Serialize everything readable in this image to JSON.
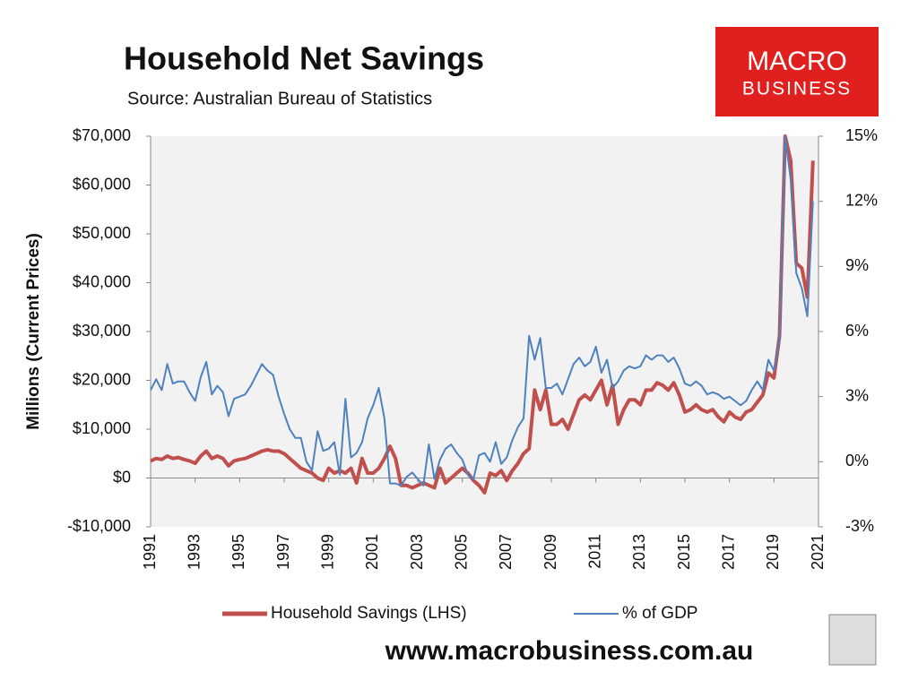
{
  "chart_data": {
    "type": "line",
    "title": "Household Net Savings",
    "subtitle": "Source: Australian Bureau of Statistics",
    "y_label": "Millions (Current Prices)",
    "logo": {
      "line1": "MACRO",
      "line2": "BUSINESS"
    },
    "footer": "www.macrobusiness.com.au",
    "x": [
      1991,
      1991.25,
      1991.5,
      1991.75,
      1992,
      1992.25,
      1992.5,
      1992.75,
      1993,
      1993.25,
      1993.5,
      1993.75,
      1994,
      1994.25,
      1994.5,
      1994.75,
      1995,
      1995.25,
      1995.5,
      1995.75,
      1996,
      1996.25,
      1996.5,
      1996.75,
      1997,
      1997.25,
      1997.5,
      1997.75,
      1998,
      1998.25,
      1998.5,
      1998.75,
      1999,
      1999.25,
      1999.5,
      1999.75,
      2000,
      2000.25,
      2000.5,
      2000.75,
      2001,
      2001.25,
      2001.5,
      2001.75,
      2002,
      2002.25,
      2002.5,
      2002.75,
      2003,
      2003.25,
      2003.5,
      2003.75,
      2004,
      2004.25,
      2004.5,
      2004.75,
      2005,
      2005.25,
      2005.5,
      2005.75,
      2006,
      2006.25,
      2006.5,
      2006.75,
      2007,
      2007.25,
      2007.5,
      2007.75,
      2008,
      2008.25,
      2008.5,
      2008.75,
      2009,
      2009.25,
      2009.5,
      2009.75,
      2010,
      2010.25,
      2010.5,
      2010.75,
      2011,
      2011.25,
      2011.5,
      2011.75,
      2012,
      2012.25,
      2012.5,
      2012.75,
      2013,
      2013.25,
      2013.5,
      2013.75,
      2014,
      2014.25,
      2014.5,
      2014.75,
      2015,
      2015.25,
      2015.5,
      2015.75,
      2016,
      2016.25,
      2016.5,
      2016.75,
      2017,
      2017.25,
      2017.5,
      2017.75,
      2018,
      2018.25,
      2018.5,
      2018.75,
      2019,
      2019.25,
      2019.5,
      2019.75,
      2020,
      2020.25,
      2020.5,
      2020.75
    ],
    "xlim": [
      1991,
      2021
    ],
    "xticks": [
      1991,
      1993,
      1995,
      1997,
      1999,
      2001,
      2003,
      2005,
      2007,
      2009,
      2011,
      2013,
      2015,
      2017,
      2019,
      2021
    ],
    "ylim": [
      -10000,
      70000
    ],
    "yticks": [
      {
        "value": -10000,
        "label": "-$10,000"
      },
      {
        "value": 0,
        "label": "$0"
      },
      {
        "value": 10000,
        "label": "$10,000"
      },
      {
        "value": 20000,
        "label": "$20,000"
      },
      {
        "value": 30000,
        "label": "$30,000"
      },
      {
        "value": 40000,
        "label": "$40,000"
      },
      {
        "value": 50000,
        "label": "$50,000"
      },
      {
        "value": 60000,
        "label": "$60,000"
      },
      {
        "value": 70000,
        "label": "$70,000"
      }
    ],
    "y2lim": [
      -3,
      15
    ],
    "y2ticks": [
      {
        "value": -3,
        "label": "-3%"
      },
      {
        "value": 0,
        "label": "0%"
      },
      {
        "value": 3,
        "label": "3%"
      },
      {
        "value": 6,
        "label": "6%"
      },
      {
        "value": 9,
        "label": "9%"
      },
      {
        "value": 12,
        "label": "12%"
      },
      {
        "value": 15,
        "label": "15%"
      }
    ],
    "series": [
      {
        "name": "Household Savings (LHS)",
        "color": "#c0504d",
        "values": [
          3500,
          4000,
          3800,
          4500,
          4000,
          4200,
          3800,
          3500,
          3000,
          4500,
          5500,
          4000,
          4500,
          4000,
          2500,
          3500,
          3800,
          4000,
          4500,
          5000,
          5500,
          5800,
          5500,
          5500,
          5000,
          4000,
          3000,
          2000,
          1500,
          1000,
          0,
          -500,
          2000,
          1000,
          1500,
          1000,
          2000,
          -1000,
          4000,
          1000,
          1000,
          2000,
          4000,
          6500,
          4000,
          -1500,
          -1500,
          -2000,
          -1500,
          -1000,
          -1500,
          -2000,
          2000,
          -1000,
          0,
          1000,
          2000,
          1000,
          -500,
          -1500,
          -3000,
          1000,
          500,
          1500,
          -500,
          1500,
          3000,
          5000,
          6000,
          18000,
          14000,
          18000,
          11000,
          11000,
          12000,
          10000,
          13000,
          16000,
          17000,
          16000,
          18000,
          20000,
          15000,
          19000,
          11000,
          14000,
          16000,
          16000,
          15000,
          18000,
          18000,
          19500,
          19000,
          18000,
          19500,
          17000,
          13500,
          14000,
          15000,
          14000,
          13500,
          14000,
          12500,
          11500,
          13500,
          12500,
          12000,
          13500,
          14000,
          15500,
          17000,
          21500,
          20500,
          29000,
          70000,
          65000,
          44000,
          43000,
          37000,
          65000
        ]
      },
      {
        "name": "% of GDP",
        "color": "#4f81bd",
        "axis": "y2",
        "values": [
          3.3,
          3.8,
          3.3,
          4.5,
          3.6,
          3.7,
          3.7,
          3.2,
          2.8,
          3.9,
          4.6,
          3.1,
          3.5,
          3.2,
          2.1,
          2.9,
          3,
          3.1,
          3.5,
          4,
          4.5,
          4.2,
          4,
          3,
          2.2,
          1.5,
          1.1,
          1.1,
          0,
          -0.4,
          1.4,
          0.5,
          0.6,
          0.9,
          -0.6,
          2.9,
          0.2,
          0.4,
          0.9,
          2,
          2.6,
          3.4,
          2,
          -1,
          -1,
          -1.1,
          -0.7,
          -0.5,
          -0.8,
          -1.1,
          0.8,
          -0.8,
          0.1,
          0.6,
          0.8,
          0.4,
          0.1,
          -0.6,
          -0.8,
          0.3,
          0.4,
          0,
          0.9,
          -0.1,
          0.2,
          1,
          1.6,
          2,
          5.8,
          4.7,
          5.7,
          3.4,
          3.4,
          3.6,
          3.1,
          3.8,
          4.5,
          4.8,
          4.4,
          4.6,
          5.3,
          4.1,
          4.7,
          3.4,
          3.7,
          4.2,
          4.4,
          4.3,
          4.4,
          4.9,
          4.7,
          4.9,
          4.9,
          4.6,
          4.8,
          4.3,
          3.6,
          3.5,
          3.7,
          3.5,
          3.1,
          3.2,
          3.1,
          2.9,
          3,
          2.8,
          2.6,
          2.8,
          3.3,
          3.7,
          3.3,
          4.7,
          4.2,
          5.6,
          15,
          13,
          8.7,
          8,
          6.7,
          12
        ]
      }
    ]
  }
}
